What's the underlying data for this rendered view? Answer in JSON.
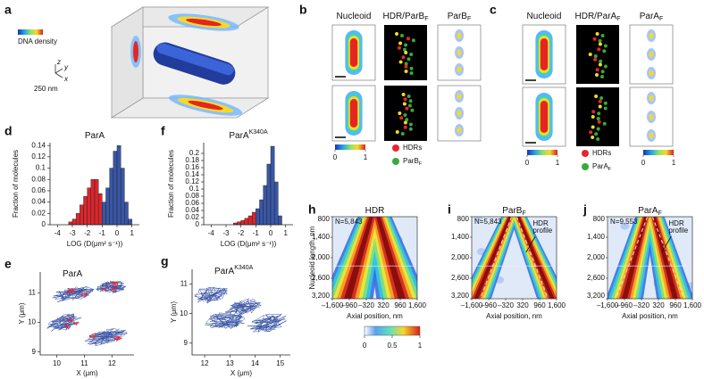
{
  "chart_data": [
    {
      "type": "histogram",
      "label": "d",
      "title": "ParA",
      "y_label": "Fraction of molecules",
      "x_label": "LOG (D(μm² s⁻¹))",
      "bins": [
        -3.25,
        -3,
        -2.75,
        -2.5,
        -2.25,
        -2,
        -1.75,
        -1.5,
        -1.25,
        -1,
        -0.75,
        -0.5,
        -0.25,
        0,
        0.25,
        0.5,
        0.75,
        1
      ],
      "values": [
        0.005,
        0.01,
        0.02,
        0.035,
        0.05,
        0.065,
        0.08,
        0.08,
        0.055,
        0.04,
        0.065,
        0.1,
        0.13,
        0.14,
        0.1,
        0.04,
        0.01
      ],
      "colors": [
        "#d7282e",
        "#d7282e",
        "#d7282e",
        "#d7282e",
        "#d7282e",
        "#d7282e",
        "#d7282e",
        "#d7282e",
        "#d7282e",
        "#3a56a5",
        "#3a56a5",
        "#3a56a5",
        "#3a56a5",
        "#3a56a5",
        "#3a56a5",
        "#3a56a5",
        "#3a56a5"
      ],
      "xlim": [
        -4.5,
        1.5
      ],
      "xticks": [
        -4,
        -3,
        -2,
        -1,
        0,
        1
      ],
      "ylim": [
        0,
        0.145
      ],
      "yticks": [
        0,
        0.02,
        0.04,
        0.06,
        0.08,
        0.1,
        0.12,
        0.14
      ]
    },
    {
      "type": "histogram",
      "label": "f",
      "title": "ParA",
      "title_sup": "K340A",
      "y_label": "Fraction of molecules",
      "x_label": "LOG (D(μm² s⁻¹))",
      "bins": [
        -2.5,
        -2.25,
        -2,
        -1.75,
        -1.5,
        -1.25,
        -1,
        -0.75,
        -0.5,
        -0.25,
        0,
        0.25,
        0.5,
        0.75
      ],
      "values": [
        0.005,
        0.008,
        0.012,
        0.018,
        0.025,
        0.035,
        0.045,
        0.07,
        0.11,
        0.17,
        0.22,
        0.12,
        0.025
      ],
      "colors": [
        "#d7282e",
        "#d7282e",
        "#d7282e",
        "#d7282e",
        "#d7282e",
        "#d7282e",
        "#3a56a5",
        "#3a56a5",
        "#3a56a5",
        "#3a56a5",
        "#3a56a5",
        "#3a56a5",
        "#3a56a5"
      ],
      "xlim": [
        -4.5,
        1.5
      ],
      "xticks": [
        -4,
        -3,
        -2,
        -1,
        0,
        1
      ],
      "ylim": [
        0,
        0.23
      ],
      "yticks": [
        0,
        0.02,
        0.04,
        0.06,
        0.08,
        0.1,
        0.12,
        0.14,
        0.16,
        0.18,
        0.2
      ]
    }
  ],
  "figure": {
    "a": {
      "label": "a",
      "colorbar_title": "DNA density",
      "scale": "250 nm",
      "axes": [
        "z",
        "y",
        "x"
      ]
    },
    "b": {
      "label": "b",
      "columns": [
        {
          "main": "Nucleoid"
        },
        {
          "main": "HDR/ParB",
          "sub": "F"
        },
        {
          "main": "ParB",
          "sub": "F"
        }
      ],
      "colorbar_ticks": [
        0,
        1
      ],
      "legend": [
        {
          "main": "HDRs",
          "color": "#e8262b"
        },
        {
          "main": "ParB",
          "sub": "F",
          "color": "#3aa93a"
        }
      ]
    },
    "c": {
      "label": "c",
      "columns": [
        {
          "main": "Nucleoid"
        },
        {
          "main": "HDR/ParA",
          "sub": "F"
        },
        {
          "main": "ParA",
          "sub": "F"
        }
      ],
      "colorbar_ticks": [
        0,
        1
      ],
      "colorbar2_ticks": [
        0,
        1
      ],
      "legend": [
        {
          "main": "HDRs",
          "color": "#e8262b"
        },
        {
          "main": "ParA",
          "sub": "F",
          "color": "#3aa93a"
        }
      ]
    },
    "e": {
      "label": "e",
      "title": "ParA",
      "x_label": "X (μm)",
      "y_label": "Y (μm)",
      "xlim": [
        9.4,
        12.8
      ],
      "xticks": [
        10,
        11,
        12
      ],
      "ylim": [
        8.9,
        11.7
      ],
      "yticks": [
        9,
        10,
        11
      ]
    },
    "g": {
      "label": "g",
      "title": "ParA",
      "title_sup": "K340A",
      "x_label": "X (μm)",
      "y_label": "Y (μm)",
      "xlim": [
        11.5,
        15.4
      ],
      "xticks": [
        12,
        13,
        14,
        15
      ],
      "ylim": [
        8.6,
        11.5
      ],
      "yticks": [
        9,
        10,
        11
      ]
    },
    "heatmaps": {
      "y_label": "Nucleoid length, nm",
      "x_label": "Axial position, nm",
      "ylim": [
        800,
        3200
      ],
      "yticks": [
        800,
        {
          "value": 1400,
          "label": "1,400"
        },
        {
          "value": 2000,
          "label": "2,000"
        },
        {
          "value": 2600,
          "label": "2,600"
        },
        {
          "value": 3200,
          "label": "3,200"
        }
      ],
      "xlim": [
        -1600,
        1600
      ],
      "xticks": [
        {
          "value": -1600,
          "label": "–1,600"
        },
        {
          "value": -960,
          "label": "–960"
        },
        {
          "value": -320,
          "label": "–320"
        },
        320,
        960,
        {
          "value": 1600,
          "label": "1,600"
        }
      ],
      "colorbar_ticks": [
        0,
        0.5,
        1
      ],
      "panels": [
        {
          "label": "h",
          "title": {
            "main": "HDR"
          },
          "n": "N=5,843"
        },
        {
          "label": "i",
          "title": {
            "main": "ParB",
            "sub": "F"
          },
          "n": "N=5,843",
          "annotation": [
            "HDR",
            "profile"
          ]
        },
        {
          "label": "j",
          "title": {
            "main": "ParA",
            "sub": "F"
          },
          "n": "N=9,553",
          "annotation": [
            "HDR",
            "profile"
          ]
        }
      ]
    }
  }
}
